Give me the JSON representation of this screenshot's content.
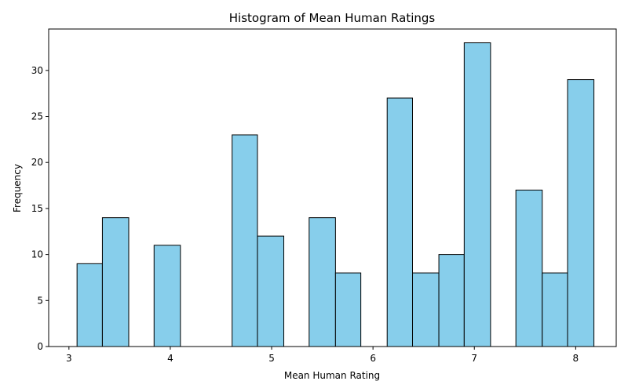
{
  "chart_data": {
    "type": "bar",
    "title": "Histogram of Mean Human Ratings",
    "xlabel": "Mean Human Rating",
    "ylabel": "Frequency",
    "xlim": [
      2.8,
      8.4
    ],
    "ylim": [
      0,
      34.5
    ],
    "bar_color": "#87CEEB",
    "edge_color": "#000000",
    "x_ticks": [
      3,
      4,
      5,
      6,
      7,
      8
    ],
    "y_ticks": [
      0,
      5,
      10,
      15,
      20,
      25,
      30
    ],
    "bins": [
      {
        "x0": 3.08,
        "x1": 3.33,
        "value": 9
      },
      {
        "x0": 3.33,
        "x1": 3.59,
        "value": 14
      },
      {
        "x0": 3.84,
        "x1": 4.1,
        "value": 11
      },
      {
        "x0": 4.61,
        "x1": 4.86,
        "value": 23
      },
      {
        "x0": 4.86,
        "x1": 5.12,
        "value": 12
      },
      {
        "x0": 5.37,
        "x1": 5.63,
        "value": 14
      },
      {
        "x0": 5.63,
        "x1": 5.88,
        "value": 8
      },
      {
        "x0": 6.14,
        "x1": 6.39,
        "value": 27
      },
      {
        "x0": 6.39,
        "x1": 6.65,
        "value": 8
      },
      {
        "x0": 6.65,
        "x1": 6.9,
        "value": 10
      },
      {
        "x0": 6.9,
        "x1": 7.16,
        "value": 33
      },
      {
        "x0": 7.41,
        "x1": 7.67,
        "value": 17
      },
      {
        "x0": 7.67,
        "x1": 7.92,
        "value": 8
      },
      {
        "x0": 7.92,
        "x1": 8.18,
        "value": 29
      }
    ]
  }
}
